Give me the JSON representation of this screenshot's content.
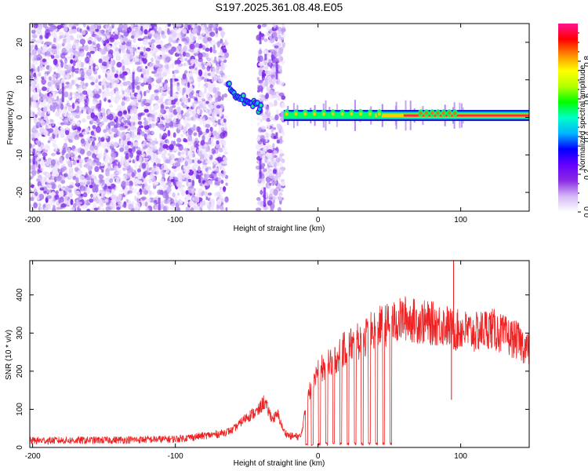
{
  "figure": {
    "title": "S197.2025.361.08.48.E05"
  },
  "chart_data": [
    {
      "type": "heatmap",
      "name": "spectrogram",
      "xlabel": "Height of straight line (km)",
      "ylabel": "Frequency (Hz)",
      "xlim": [
        -202,
        148
      ],
      "ylim": [
        -25,
        25
      ],
      "xticks": [
        -200,
        -100,
        0,
        100
      ],
      "yticks": [
        -20,
        -10,
        0,
        10,
        20
      ],
      "colorbar": {
        "label": "Normalized spectral amplitude",
        "range": [
          0,
          1
        ],
        "ticks": [
          "0.0",
          "0.2",
          "0.4",
          "0.6",
          "0.8"
        ],
        "colors": [
          "#ffffff",
          "#d4b8f5",
          "#8a2be2",
          "#6600ff",
          "#0000ff",
          "#00b4ff",
          "#00ffc8",
          "#00ff00",
          "#b4ff00",
          "#ffff00",
          "#ff8c00",
          "#ff0000",
          "#ff1493"
        ]
      },
      "regions": [
        {
          "desc": "broadband noise",
          "x": [
            -202,
            -64
          ],
          "freq": [
            -25,
            25
          ],
          "amplitude": 0.15
        },
        {
          "desc": "noise patch",
          "x": [
            -42,
            -24
          ],
          "freq": [
            -25,
            25
          ],
          "amplitude": 0.15
        },
        {
          "desc": "descending tone",
          "x": [
            -63,
            -40
          ],
          "freq_start": 8,
          "freq_end": 2,
          "amplitude": 0.3
        },
        {
          "desc": "steady tone",
          "x": [
            -24,
            148
          ],
          "freq": 0.5,
          "amplitude": 0.9
        }
      ]
    },
    {
      "type": "line",
      "name": "snr",
      "xlabel": "Height of straight line (km)",
      "ylabel": "SNR (10 * v/v)",
      "xlim": [
        -202,
        148
      ],
      "ylim": [
        0,
        490
      ],
      "xticks": [
        -200,
        -100,
        0,
        100
      ],
      "yticks": [
        0,
        100,
        200,
        300,
        400
      ],
      "series": [
        {
          "name": "SNR",
          "color": "#ee2222",
          "x": [
            -202,
            -150,
            -100,
            -70,
            -60,
            -50,
            -42,
            -38,
            -32,
            -28,
            -24,
            -20,
            -12,
            -8,
            -4,
            0,
            10,
            20,
            30,
            40,
            46,
            52,
            56,
            60,
            70,
            80,
            90,
            95,
            100,
            110,
            120,
            130,
            140,
            148
          ],
          "values": [
            18,
            19,
            22,
            35,
            45,
            80,
            95,
            120,
            75,
            85,
            42,
            30,
            28,
            115,
            175,
            200,
            225,
            265,
            280,
            310,
            320,
            325,
            330,
            340,
            330,
            325,
            320,
            305,
            310,
            300,
            315,
            295,
            280,
            255
          ],
          "annotations": [
            {
              "x": 95,
              "value": 490,
              "desc": "spike"
            },
            {
              "x": 93.5,
              "value": 125,
              "desc": "dip"
            }
          ]
        }
      ]
    }
  ]
}
